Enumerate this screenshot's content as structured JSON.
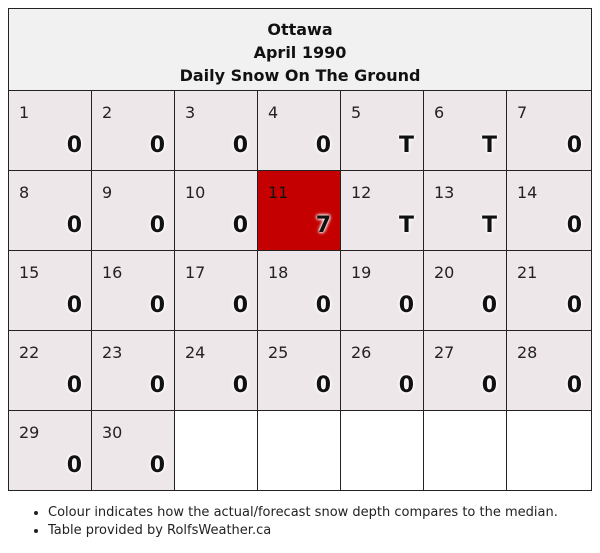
{
  "header": {
    "city": "Ottawa",
    "month": "April 1990",
    "subtitle": "Daily Snow On The Ground"
  },
  "days": [
    {
      "day": "1",
      "value": "0"
    },
    {
      "day": "2",
      "value": "0"
    },
    {
      "day": "3",
      "value": "0"
    },
    {
      "day": "4",
      "value": "0"
    },
    {
      "day": "5",
      "value": "T"
    },
    {
      "day": "6",
      "value": "T"
    },
    {
      "day": "7",
      "value": "0"
    },
    {
      "day": "8",
      "value": "0"
    },
    {
      "day": "9",
      "value": "0"
    },
    {
      "day": "10",
      "value": "0"
    },
    {
      "day": "11",
      "value": "7",
      "highlight": true
    },
    {
      "day": "12",
      "value": "T"
    },
    {
      "day": "13",
      "value": "T"
    },
    {
      "day": "14",
      "value": "0"
    },
    {
      "day": "15",
      "value": "0"
    },
    {
      "day": "16",
      "value": "0"
    },
    {
      "day": "17",
      "value": "0"
    },
    {
      "day": "18",
      "value": "0"
    },
    {
      "day": "19",
      "value": "0"
    },
    {
      "day": "20",
      "value": "0"
    },
    {
      "day": "21",
      "value": "0"
    },
    {
      "day": "22",
      "value": "0"
    },
    {
      "day": "23",
      "value": "0"
    },
    {
      "day": "24",
      "value": "0"
    },
    {
      "day": "25",
      "value": "0"
    },
    {
      "day": "26",
      "value": "0"
    },
    {
      "day": "27",
      "value": "0"
    },
    {
      "day": "28",
      "value": "0"
    },
    {
      "day": "29",
      "value": "0"
    },
    {
      "day": "30",
      "value": "0"
    }
  ],
  "colors": {
    "normal": "#eee7e9",
    "highlight": "#c40000",
    "blank": "#ffffff"
  },
  "notes": [
    "Colour indicates how the actual/forecast snow depth compares to the median.",
    "Table provided by RolfsWeather.ca"
  ]
}
